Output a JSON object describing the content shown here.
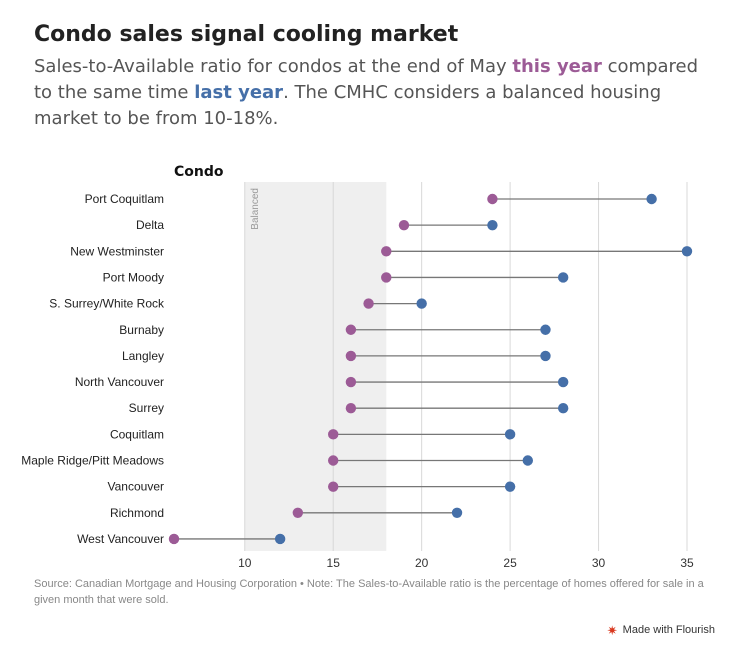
{
  "header": {
    "title": "Condo sales signal cooling market",
    "subtitle_part1": "Sales-to-Available ratio for condos at the end of May ",
    "subtitle_this_year": "this year",
    "subtitle_part2": " compared to the same time ",
    "subtitle_last_year": "last year",
    "subtitle_part3": ". The CMHC considers a balanced housing market to be from 10-18%."
  },
  "footer": {
    "source_note": "Source: Canadian Mortgage and Housing Corporation • Note: The Sales-to-Available ratio is the percentage of homes offered for sale in a given month that were sold.",
    "brand_label": "Made with Flourish",
    "brand_icon": "flourish-logo-icon"
  },
  "chart_data": {
    "type": "dot-range",
    "title": "Condo",
    "categories": [
      "Port Coquitlam",
      "Delta",
      "New Westminster",
      "Port Moody",
      "S. Surrey/White Rock",
      "Burnaby",
      "Langley",
      "North Vancouver",
      "Surrey",
      "Coquitlam",
      "Maple Ridge/Pitt Meadows",
      "Vancouver",
      "Richmond",
      "West Vancouver"
    ],
    "series": [
      {
        "name": "this year",
        "color": "#9c5b96",
        "values": [
          24,
          19,
          18,
          18,
          17,
          16,
          16,
          16,
          16,
          15,
          15,
          15,
          13,
          6
        ]
      },
      {
        "name": "last year",
        "color": "#456fa8",
        "values": [
          33,
          24,
          35,
          28,
          20,
          27,
          27,
          28,
          28,
          25,
          26,
          25,
          22,
          12
        ]
      }
    ],
    "xlim": [
      6,
      35
    ],
    "xticks": [
      10,
      15,
      20,
      25,
      30,
      35
    ],
    "band": {
      "from": 10,
      "to": 18,
      "label": "Balanced",
      "color": "#efefef"
    },
    "grid": true,
    "line_color": "#777777"
  }
}
